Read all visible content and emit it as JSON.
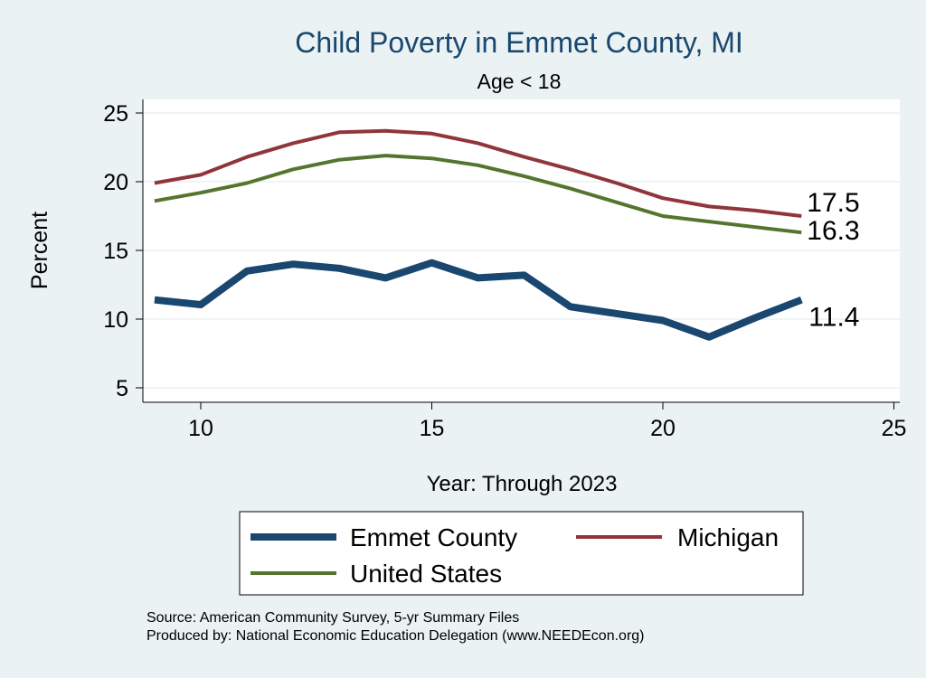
{
  "chart_data": {
    "type": "line",
    "title": "Child Poverty in Emmet County, MI",
    "subtitle": "Age < 18",
    "xlabel": "Year: Through 2023",
    "ylabel": "Percent",
    "xlim": [
      8.7,
      25.3
    ],
    "ylim": [
      4,
      26
    ],
    "xticks": [
      10,
      15,
      20,
      25
    ],
    "yticks": [
      5,
      10,
      15,
      20,
      25
    ],
    "grid": true,
    "x": [
      9,
      10,
      11,
      12,
      13,
      14,
      15,
      16,
      17,
      18,
      19,
      20,
      21,
      22,
      23
    ],
    "series": [
      {
        "name": "Emmet County",
        "color": "#1a476f",
        "width": 8,
        "values": [
          11.4,
          11.05,
          13.5,
          14.0,
          13.7,
          13.0,
          14.1,
          13.0,
          13.2,
          10.9,
          10.4,
          9.9,
          8.7,
          10.1,
          11.4
        ],
        "end_label": "11.4"
      },
      {
        "name": "Michigan",
        "color": "#90353b",
        "width": 4,
        "values": [
          19.9,
          20.5,
          21.8,
          22.8,
          23.6,
          23.7,
          23.5,
          22.8,
          21.8,
          20.9,
          19.9,
          18.8,
          18.2,
          17.9,
          17.5
        ],
        "end_label": "17.5"
      },
      {
        "name": "United States",
        "color": "#55752f",
        "width": 4,
        "values": [
          18.6,
          19.2,
          19.9,
          20.9,
          21.6,
          21.9,
          21.7,
          21.2,
          20.4,
          19.5,
          18.5,
          17.5,
          17.1,
          16.7,
          16.3
        ],
        "end_label": "16.3"
      }
    ],
    "legend_position": "bottom",
    "notes": [
      "Source: American Community Survey, 5-yr Summary Files",
      "Produced by: National Economic Education Delegation (www.NEEDEcon.org)"
    ]
  }
}
